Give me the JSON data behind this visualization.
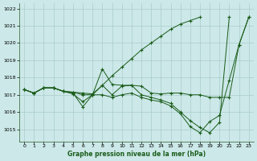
{
  "bg_color": "#cce8e8",
  "grid_color": "#aacccc",
  "line_color": "#1a5c1a",
  "title": "Graphe pression niveau de la mer (hPa)",
  "xlim": [
    -0.5,
    23.5
  ],
  "ylim": [
    1014.3,
    1022.3
  ],
  "yticks": [
    1015,
    1016,
    1017,
    1018,
    1019,
    1020,
    1021,
    1022
  ],
  "xticks": [
    0,
    1,
    2,
    3,
    4,
    5,
    6,
    7,
    8,
    9,
    10,
    11,
    12,
    13,
    14,
    15,
    16,
    17,
    18,
    19,
    20,
    21,
    22,
    23
  ],
  "series": [
    {
      "x": [
        0,
        1,
        2,
        3,
        4,
        5,
        6,
        7,
        8,
        9,
        10,
        11,
        12,
        13,
        14,
        15,
        16,
        17,
        18,
        19,
        20,
        21,
        22
      ],
      "y": [
        1017.3,
        1017.1,
        1017.4,
        1017.4,
        1017.2,
        1017.15,
        1017.1,
        1017.05,
        1017.55,
        1018.1,
        1018.6,
        1019.1,
        1019.6,
        1020.0,
        1020.4,
        1020.8,
        1021.1,
        1021.3,
        1021.5,
        null,
        null,
        null,
        null
      ]
    },
    {
      "x": [
        0,
        1,
        2,
        3,
        4,
        5,
        6,
        7,
        8,
        9,
        10,
        11,
        12,
        13,
        14,
        15,
        16,
        17,
        18,
        19,
        20,
        21,
        22,
        23
      ],
      "y": [
        1017.3,
        1017.1,
        1017.4,
        1017.4,
        1017.2,
        1017.15,
        1017.0,
        1017.0,
        1018.5,
        1017.6,
        1017.55,
        1017.55,
        1017.5,
        1017.1,
        1017.05,
        1017.1,
        1017.1,
        1017.0,
        1017.0,
        1016.85,
        1016.85,
        1016.85,
        1019.9,
        1021.5
      ]
    },
    {
      "x": [
        0,
        1,
        2,
        3,
        4,
        5,
        6,
        7,
        8,
        9,
        10,
        11,
        12,
        13,
        14,
        15,
        16,
        17,
        18,
        19,
        20,
        21
      ],
      "y": [
        1017.3,
        1017.1,
        1017.4,
        1017.4,
        1017.2,
        1017.1,
        1016.3,
        1017.0,
        1017.55,
        1017.0,
        1017.5,
        1017.55,
        1017.0,
        1016.85,
        1016.7,
        1016.5,
        1016.0,
        1015.5,
        1015.1,
        1014.8,
        1015.4,
        1021.5
      ]
    },
    {
      "x": [
        0,
        1,
        2,
        3,
        4,
        5,
        6,
        7,
        8,
        9,
        10,
        11,
        12,
        13,
        14,
        15,
        16,
        17,
        18,
        19,
        20,
        21,
        22,
        23
      ],
      "y": [
        1017.3,
        1017.1,
        1017.4,
        1017.4,
        1017.2,
        1017.05,
        1016.6,
        1017.0,
        1017.0,
        1016.85,
        1017.0,
        1017.1,
        1016.85,
        1016.7,
        1016.6,
        1016.35,
        1015.9,
        1015.15,
        1014.8,
        1015.45,
        1015.8,
        1017.85,
        1019.9,
        1021.5
      ]
    }
  ]
}
